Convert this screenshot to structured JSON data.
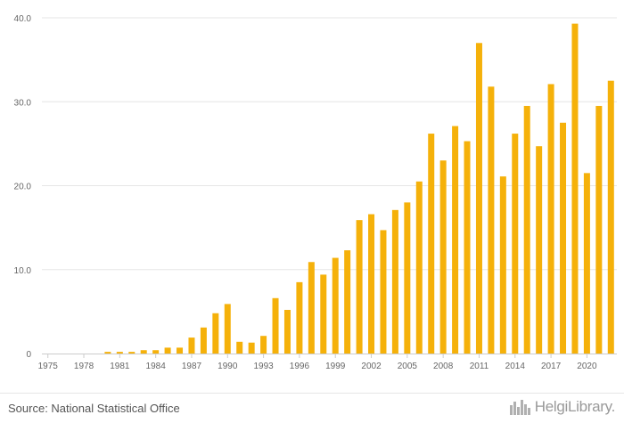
{
  "chart_data": {
    "type": "bar",
    "categories": [
      "1975",
      "1976",
      "1977",
      "1978",
      "1979",
      "1980",
      "1981",
      "1982",
      "1983",
      "1984",
      "1985",
      "1986",
      "1987",
      "1988",
      "1989",
      "1990",
      "1991",
      "1992",
      "1993",
      "1994",
      "1995",
      "1996",
      "1997",
      "1998",
      "1999",
      "2000",
      "2001",
      "2002",
      "2003",
      "2004",
      "2005",
      "2006",
      "2007",
      "2008",
      "2009",
      "2010",
      "2011",
      "2012",
      "2013",
      "2014",
      "2015",
      "2016",
      "2017",
      "2018",
      "2019",
      "2020",
      "2021",
      "2022"
    ],
    "values": [
      0.0,
      0.0,
      0.0,
      0.0,
      0.0,
      0.2,
      0.2,
      0.2,
      0.4,
      0.4,
      0.7,
      0.7,
      1.9,
      3.1,
      4.8,
      5.9,
      1.4,
      1.3,
      2.1,
      6.6,
      5.2,
      8.5,
      10.9,
      9.4,
      11.4,
      12.3,
      15.9,
      16.6,
      14.7,
      17.1,
      18.0,
      20.5,
      26.2,
      23.0,
      27.1,
      25.3,
      37.0,
      31.8,
      21.1,
      26.2,
      29.5,
      24.7,
      32.1,
      27.5,
      39.3,
      21.5,
      29.5,
      32.5
    ],
    "x_tick_labels": [
      "1975",
      "1978",
      "1981",
      "1984",
      "1987",
      "1990",
      "1993",
      "1996",
      "1999",
      "2002",
      "2005",
      "2008",
      "2011",
      "2014",
      "2017",
      "2020"
    ],
    "y_tick_labels": [
      "0",
      "10.0",
      "20.0",
      "30.0",
      "40.0"
    ],
    "y_ticks": [
      0,
      10,
      20,
      30,
      40
    ],
    "ylim": [
      0,
      40
    ],
    "title": "",
    "xlabel": "",
    "ylabel": "",
    "grid": "horizontal",
    "bar_color": "#F5B10A",
    "grid_color": "#e6e6e6",
    "axis_color": "#cccccc",
    "tick_label_color": "#666666"
  },
  "footer": {
    "source": "Source: National Statistical Office",
    "logo_icon": "helgilibrary-logo-icon",
    "logo_text": "HelgiLibrary."
  }
}
